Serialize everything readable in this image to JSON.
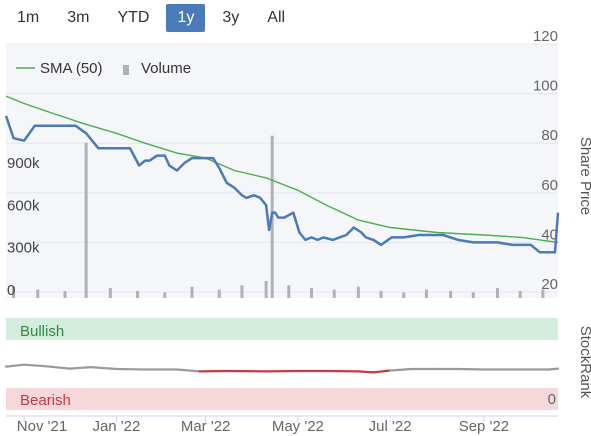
{
  "range_selector": {
    "buttons": [
      {
        "label": "1m"
      },
      {
        "label": "3m"
      },
      {
        "label": "YTD"
      },
      {
        "label": "1y"
      },
      {
        "label": "3y"
      },
      {
        "label": "All"
      }
    ],
    "active": "1y"
  },
  "colors": {
    "price": "#4a7ab8",
    "sma": "#4cae4c",
    "volume": "#b0b0b8",
    "bullish_bg": "#d4ecdc",
    "bearish_bg": "#f6d8da",
    "bullish_text": "#2e8a3e",
    "bearish_text": "#c43a44",
    "rank_gray": "#9a9a9a",
    "rank_red": "#c43a44"
  },
  "chart_data": [
    {
      "type": "line",
      "legend": [
        "SMA (50)",
        "Volume"
      ],
      "legend_placement": "top-left",
      "y_title": "Share Price",
      "y_ticks": [
        "120",
        "100",
        "80",
        "60",
        "40",
        "20"
      ],
      "ylim": [
        20,
        120
      ],
      "volume_ticks": [
        "900k",
        "600k",
        "300k",
        "0"
      ],
      "volume_lim": [
        0,
        1800000
      ],
      "x_ticks": [
        "Nov '21",
        "Jan '22",
        "Mar '22",
        "May '22",
        "Jul '22",
        "Sep '22"
      ],
      "x_range": [
        "2021-10-20",
        "2022-10-20"
      ],
      "series": [
        {
          "name": "Share Price",
          "x": [
            "2021-10-20",
            "2021-10-25",
            "2021-11-01",
            "2021-11-08",
            "2021-11-15",
            "2021-11-25",
            "2021-12-05",
            "2021-12-12",
            "2021-12-20",
            "2021-12-26",
            "2022-01-02",
            "2022-01-10",
            "2022-01-16",
            "2022-01-20",
            "2022-01-23",
            "2022-01-28",
            "2022-02-02",
            "2022-02-05",
            "2022-02-10",
            "2022-02-15",
            "2022-02-20",
            "2022-02-24",
            "2022-03-02",
            "2022-03-06",
            "2022-03-10",
            "2022-03-15",
            "2022-03-20",
            "2022-03-25",
            "2022-03-28",
            "2022-04-02",
            "2022-04-06",
            "2022-04-10",
            "2022-04-12",
            "2022-04-14",
            "2022-04-16",
            "2022-04-18",
            "2022-04-22",
            "2022-04-28",
            "2022-05-02",
            "2022-05-06",
            "2022-05-10",
            "2022-05-14",
            "2022-05-18",
            "2022-05-24",
            "2022-06-02",
            "2022-06-07",
            "2022-06-12",
            "2022-06-15",
            "2022-06-20",
            "2022-06-25",
            "2022-07-02",
            "2022-07-10",
            "2022-07-20",
            "2022-07-28",
            "2022-08-05",
            "2022-08-15",
            "2022-08-25",
            "2022-09-02",
            "2022-09-10",
            "2022-09-20",
            "2022-09-26",
            "2022-10-02",
            "2022-10-08",
            "2022-10-14",
            "2022-10-18",
            "2022-10-20"
          ],
          "values": [
            91,
            82,
            81,
            87,
            87,
            87,
            87,
            84,
            78,
            78,
            78,
            78,
            71,
            73,
            73,
            75,
            75,
            71,
            69,
            72,
            74,
            74,
            74,
            74,
            70,
            64,
            62,
            59,
            58,
            59,
            58,
            55,
            45,
            52,
            52,
            50,
            50,
            52,
            44,
            41,
            42,
            41,
            42,
            41,
            43,
            46,
            44,
            42,
            41,
            39,
            42,
            42,
            43,
            43,
            43,
            41,
            40,
            40,
            40,
            39,
            39,
            39,
            36,
            36,
            36,
            52
          ]
        },
        {
          "name": "SMA (50)",
          "x": [
            "2021-10-20",
            "2021-11-01",
            "2021-11-20",
            "2021-12-10",
            "2022-01-01",
            "2022-01-20",
            "2022-02-10",
            "2022-03-01",
            "2022-03-20",
            "2022-04-10",
            "2022-05-01",
            "2022-05-20",
            "2022-06-10",
            "2022-07-01",
            "2022-08-01",
            "2022-09-01",
            "2022-09-26",
            "2022-10-20"
          ],
          "values": [
            99,
            96,
            92,
            88,
            84,
            80,
            76,
            74,
            69,
            66,
            61,
            55,
            49,
            46,
            44,
            43,
            42,
            40
          ]
        }
      ],
      "volume": {
        "x": [
          "2021-10-25",
          "2021-11-10",
          "2021-11-28",
          "2021-12-12",
          "2021-12-28",
          "2022-01-15",
          "2022-02-02",
          "2022-02-20",
          "2022-03-10",
          "2022-03-25",
          "2022-04-10",
          "2022-04-14",
          "2022-04-25",
          "2022-05-10",
          "2022-05-25",
          "2022-06-10",
          "2022-06-25",
          "2022-07-10",
          "2022-07-25",
          "2022-08-10",
          "2022-08-25",
          "2022-09-10",
          "2022-09-25",
          "2022-10-10"
        ],
        "values": [
          80000,
          60000,
          50000,
          1100000,
          70000,
          50000,
          40000,
          80000,
          60000,
          90000,
          120000,
          1150000,
          90000,
          70000,
          60000,
          80000,
          50000,
          40000,
          60000,
          50000,
          40000,
          70000,
          50000,
          60000
        ]
      }
    },
    {
      "type": "line",
      "y_title": "StockRank",
      "bands": [
        "Bullish",
        "Bearish"
      ],
      "y_ticks": [
        "0"
      ],
      "ylim": [
        0,
        100
      ],
      "series": [
        {
          "name": "StockRank",
          "x": [
            "2021-10-20",
            "2021-11-01",
            "2021-11-15",
            "2021-12-01",
            "2021-12-15",
            "2022-01-01",
            "2022-01-20",
            "2022-02-10",
            "2022-02-25",
            "2022-03-15",
            "2022-04-10",
            "2022-05-01",
            "2022-05-20",
            "2022-06-10",
            "2022-06-20",
            "2022-07-01",
            "2022-07-15",
            "2022-08-01",
            "2022-08-15",
            "2022-09-01",
            "2022-09-20",
            "2022-10-05",
            "2022-10-14",
            "2022-10-20"
          ],
          "values": [
            32,
            36,
            33,
            28,
            31,
            27,
            26,
            26,
            22,
            23,
            22,
            23,
            23,
            22,
            20,
            24,
            27,
            27,
            27,
            26,
            26,
            26,
            26,
            28
          ]
        }
      ]
    }
  ]
}
